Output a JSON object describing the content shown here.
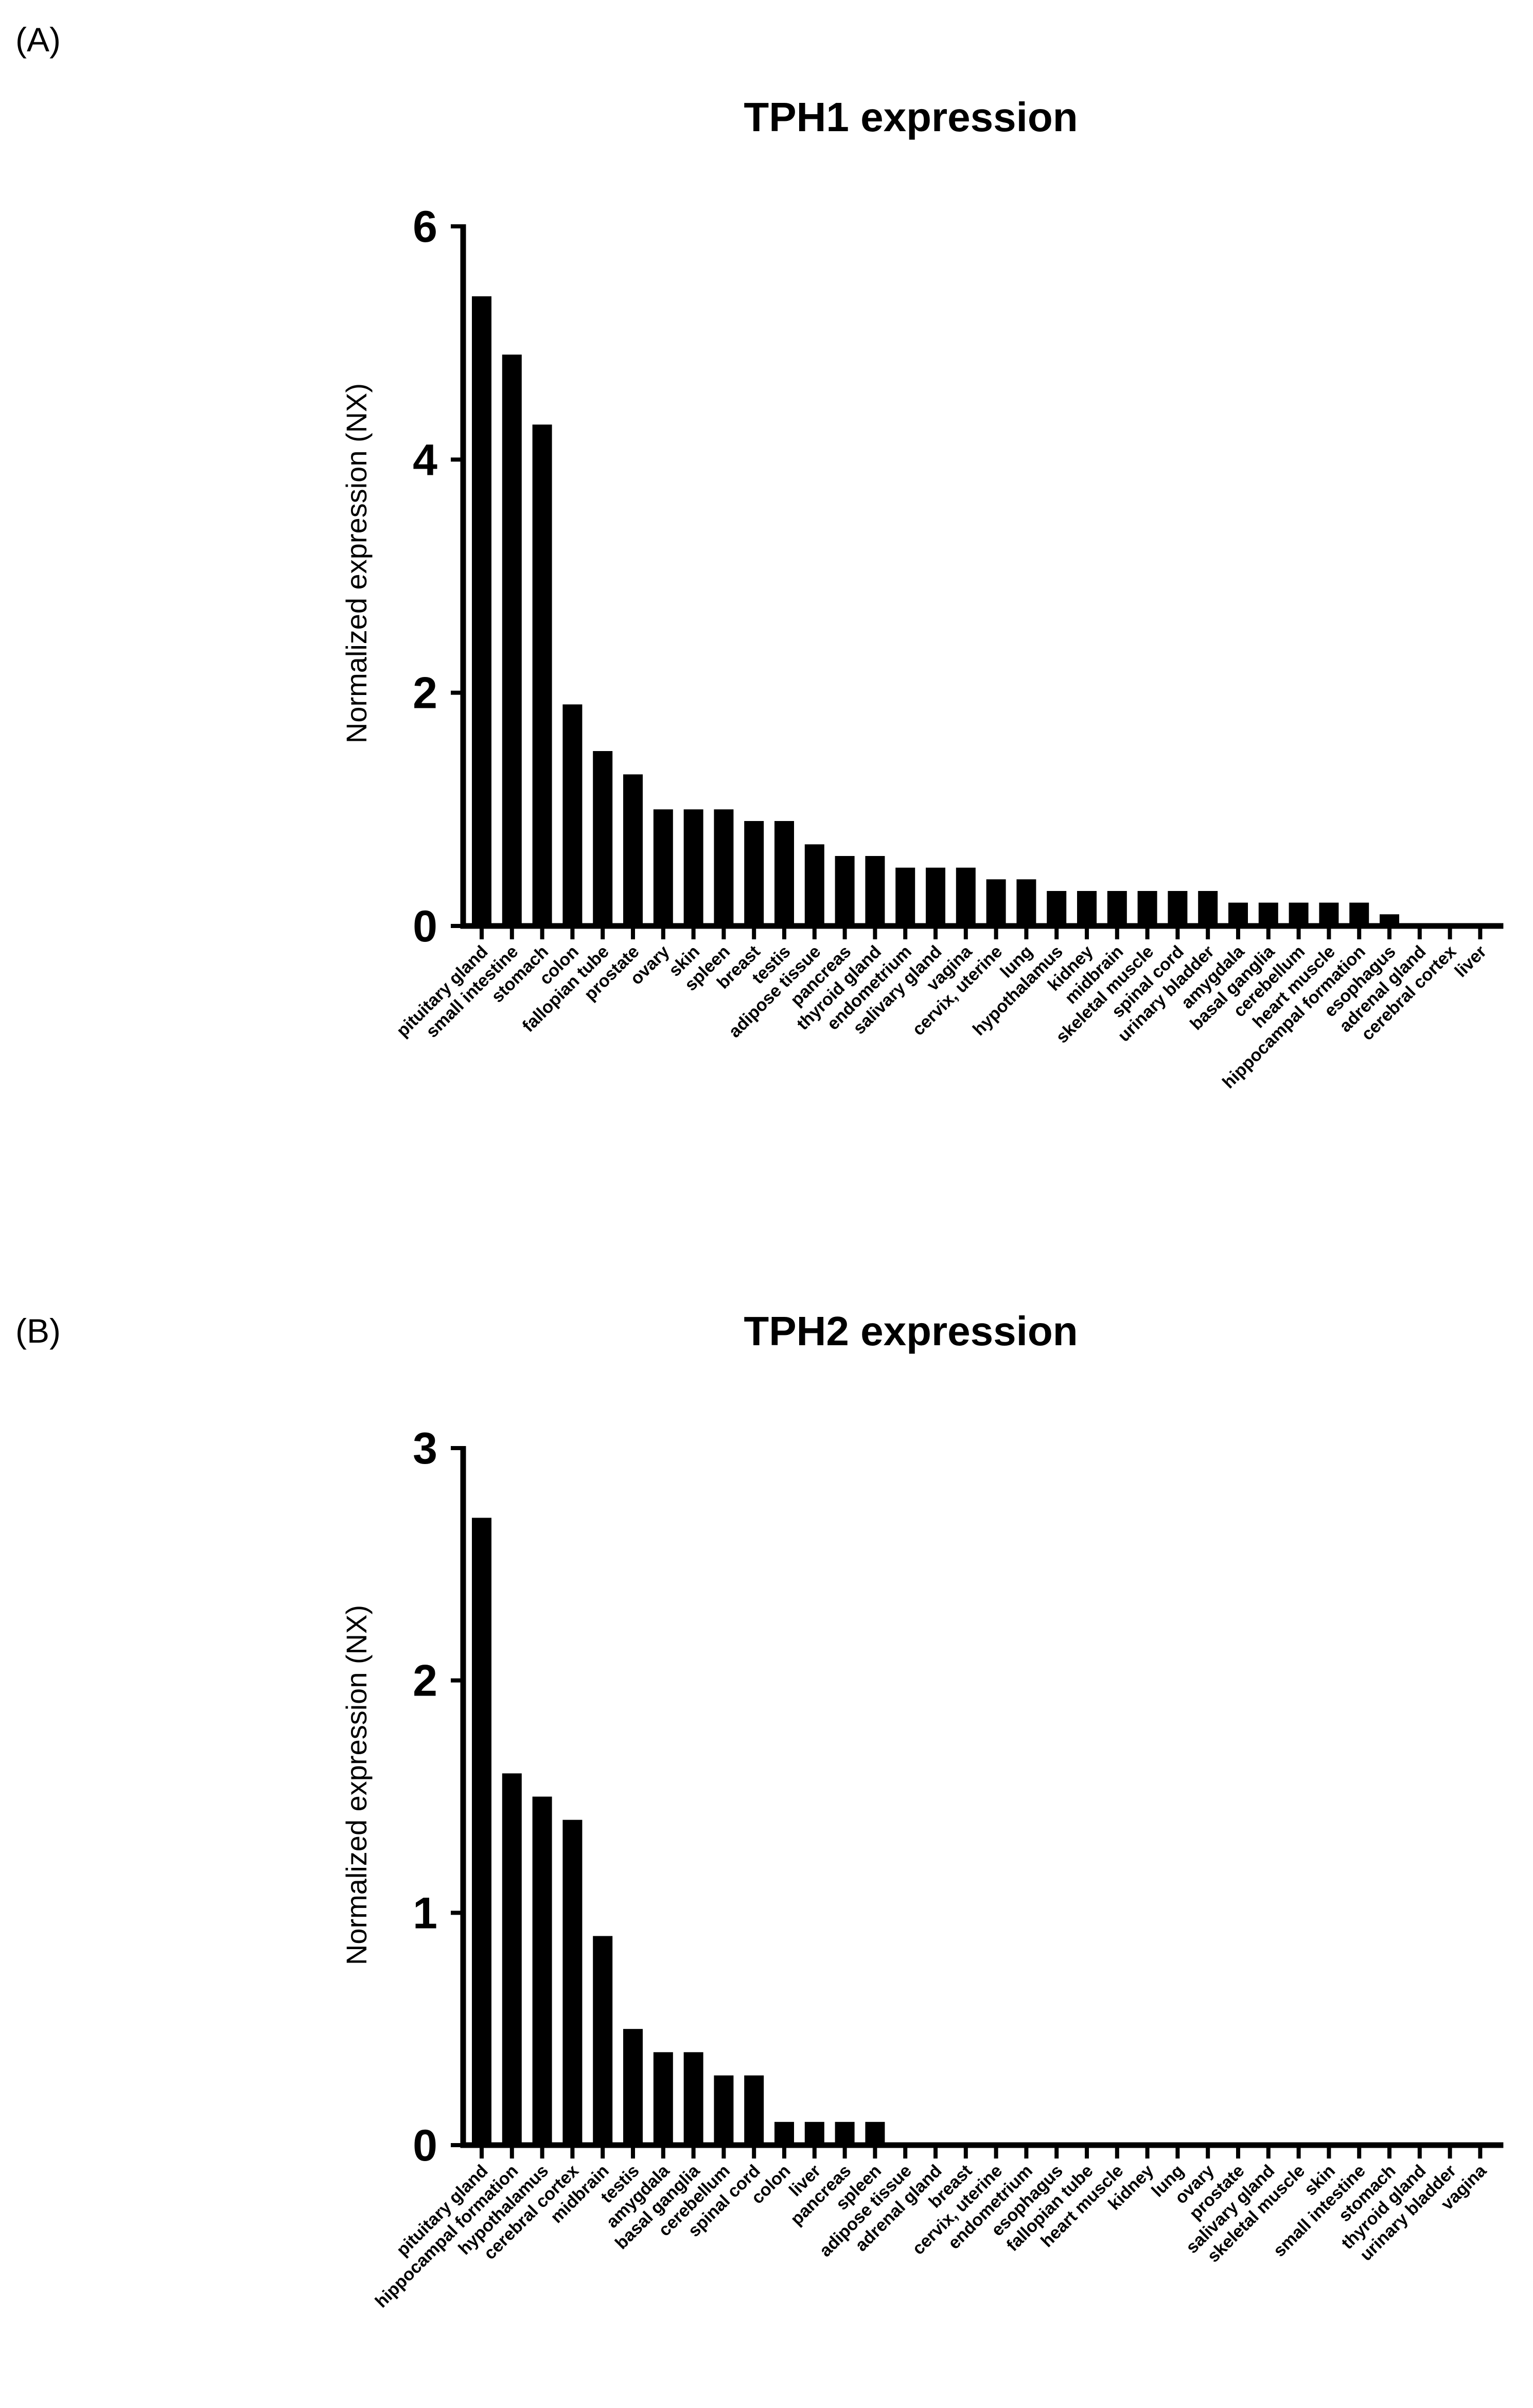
{
  "chart_data": [
    {
      "type": "bar",
      "panel": "(A)",
      "title": "TPH1 expression",
      "xlabel": "",
      "ylabel": "Normalized expression (NX)",
      "ylim": [
        0,
        6
      ],
      "yticks": [
        0,
        2,
        4,
        6
      ],
      "ytick_labels": [
        "0",
        "2",
        "4",
        "6"
      ],
      "grid": false,
      "categories": [
        "pituitary gland",
        "small intestine",
        "stomach",
        "colon",
        "fallopian tube",
        "prostate",
        "ovary",
        "skin",
        "spleen",
        "breast",
        "testis",
        "adipose tissue",
        "pancreas",
        "thyroid gland",
        "endometrium",
        "salivary gland",
        "vagina",
        "cervix, uterine",
        "lung",
        "hypothalamus",
        "kidney",
        "midbrain",
        "skeletal muscle",
        "spinal cord",
        "urinary bladder",
        "amygdala",
        "basal ganglia",
        "cerebellum",
        "heart muscle",
        "hippocampal formation",
        "esophagus",
        "adrenal gland",
        "cerebral cortex",
        "liver"
      ],
      "values": [
        5.4,
        4.9,
        4.3,
        1.9,
        1.5,
        1.3,
        1.0,
        1.0,
        1.0,
        0.9,
        0.9,
        0.7,
        0.6,
        0.6,
        0.5,
        0.5,
        0.5,
        0.4,
        0.4,
        0.3,
        0.3,
        0.3,
        0.3,
        0.3,
        0.3,
        0.2,
        0.2,
        0.2,
        0.2,
        0.2,
        0.1,
        0.0,
        0.0,
        0.0
      ]
    },
    {
      "type": "bar",
      "panel": "(B)",
      "title": "TPH2 expression",
      "xlabel": "",
      "ylabel": "Normalized expression (NX)",
      "ylim": [
        0,
        3
      ],
      "yticks": [
        0,
        1,
        2,
        3
      ],
      "ytick_labels": [
        "0",
        "1",
        "2",
        "3"
      ],
      "grid": false,
      "categories": [
        "pituitary gland",
        "hippocampal formation",
        "hypothalamus",
        "cerebral cortex",
        "midbrain",
        "testis",
        "amygdala",
        "basal ganglia",
        "cerebellum",
        "spinal cord",
        "colon",
        "liver",
        "pancreas",
        "spleen",
        "adipose tissue",
        "adrenal gland",
        "breast",
        "cervix, uterine",
        "endometrium",
        "esophagus",
        "fallopian tube",
        "heart muscle",
        "kidney",
        "lung",
        "ovary",
        "prostate",
        "salivary gland",
        "skeletal muscle",
        "skin",
        "small intestine",
        "stomach",
        "thyroid gland",
        "urinary bladder",
        "vagina"
      ],
      "values": [
        2.7,
        1.6,
        1.5,
        1.4,
        0.9,
        0.5,
        0.4,
        0.4,
        0.3,
        0.3,
        0.1,
        0.1,
        0.1,
        0.1,
        0.0,
        0.0,
        0.0,
        0.0,
        0.0,
        0.0,
        0.0,
        0.0,
        0.0,
        0.0,
        0.0,
        0.0,
        0.0,
        0.0,
        0.0,
        0.0,
        0.0,
        0.0,
        0.0,
        0.0
      ]
    }
  ]
}
